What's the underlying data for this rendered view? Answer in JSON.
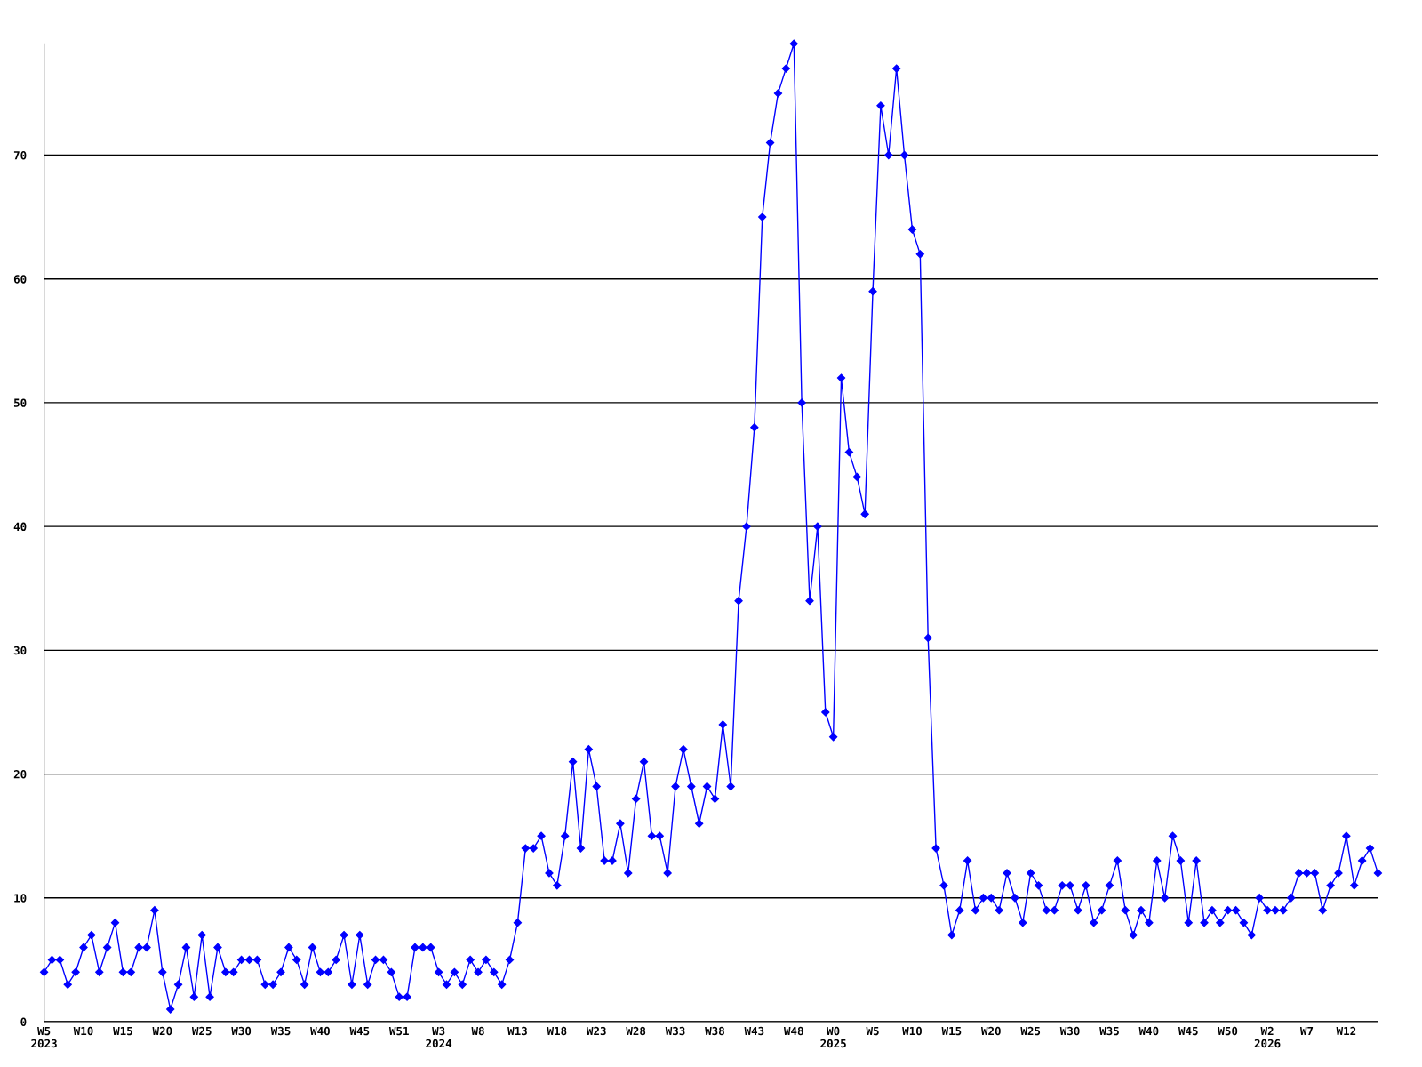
{
  "chart_data": {
    "type": "line",
    "categories": [
      "W5\n2023",
      null,
      null,
      null,
      null,
      "W10",
      null,
      null,
      null,
      null,
      "W15",
      null,
      null,
      null,
      null,
      "W20",
      null,
      null,
      null,
      null,
      "W25",
      null,
      null,
      null,
      null,
      "W30",
      null,
      null,
      null,
      null,
      "W35",
      null,
      null,
      null,
      null,
      "W40",
      null,
      null,
      null,
      null,
      "W45",
      null,
      null,
      null,
      null,
      "W51",
      null,
      null,
      null,
      null,
      "W3\n2024",
      null,
      null,
      null,
      null,
      "W8",
      null,
      null,
      null,
      null,
      "W13",
      null,
      null,
      null,
      null,
      "W18",
      null,
      null,
      null,
      null,
      "W23",
      null,
      null,
      null,
      null,
      "W28",
      null,
      null,
      null,
      null,
      "W33",
      null,
      null,
      null,
      null,
      "W38",
      null,
      null,
      null,
      null,
      "W43",
      null,
      null,
      null,
      null,
      "W48",
      null,
      null,
      null,
      null,
      "W0\n2025",
      null,
      null,
      null,
      null,
      "W5",
      null,
      null,
      null,
      null,
      "W10",
      null,
      null,
      null,
      null,
      "W15",
      null,
      null,
      null,
      null,
      "W20",
      null,
      null,
      null,
      null,
      "W25",
      null,
      null,
      null,
      null,
      "W30",
      null,
      null,
      null,
      null,
      "W35",
      null,
      null,
      null,
      null,
      "W40",
      null,
      null,
      null,
      null,
      "W45",
      null,
      null,
      null,
      null,
      "W50",
      null,
      null,
      null,
      null,
      "W2\n2026",
      null,
      null,
      null,
      null,
      "W7",
      null,
      null,
      null,
      null,
      "W12",
      null,
      null,
      null,
      null
    ],
    "series": [
      {
        "color": "#0000ff",
        "values": [
          4,
          5,
          5,
          3,
          4,
          6,
          7,
          4,
          6,
          8,
          4,
          4,
          6,
          6,
          9,
          4,
          1,
          3,
          6,
          2,
          7,
          2,
          6,
          4,
          4,
          5,
          5,
          5,
          3,
          3,
          4,
          6,
          5,
          3,
          6,
          4,
          4,
          5,
          7,
          3,
          7,
          3,
          5,
          5,
          4,
          2,
          2,
          6,
          6,
          6,
          4,
          3,
          4,
          3,
          5,
          4,
          5,
          4,
          3,
          5,
          8,
          14,
          14,
          15,
          12,
          11,
          15,
          21,
          14,
          22,
          19,
          13,
          13,
          16,
          12,
          18,
          21,
          15,
          15,
          12,
          19,
          22,
          19,
          16,
          19,
          18,
          24,
          19,
          34,
          40,
          48,
          65,
          71,
          75,
          77,
          79,
          50,
          34,
          40,
          25,
          23,
          52,
          46,
          44,
          41,
          59,
          74,
          70,
          77,
          70,
          64,
          62,
          31,
          14,
          11,
          7,
          9,
          13,
          9,
          10,
          10,
          9,
          12,
          10,
          8,
          12,
          11,
          9,
          9,
          11,
          11,
          9,
          11,
          8,
          9,
          11,
          13,
          9,
          7,
          9,
          8,
          13,
          10,
          15,
          13,
          8,
          13,
          8,
          9,
          8,
          9,
          9,
          8,
          7,
          10,
          9,
          9,
          9,
          10,
          12,
          12,
          12,
          9,
          11,
          12,
          15,
          11,
          13,
          14,
          12
        ]
      }
    ],
    "ylim": [
      0,
      79
    ],
    "yticks": [
      0,
      10,
      20,
      30,
      40,
      50,
      60,
      70
    ],
    "grid": "y",
    "legend": false,
    "marker": "diamond",
    "line_style": "solid"
  }
}
